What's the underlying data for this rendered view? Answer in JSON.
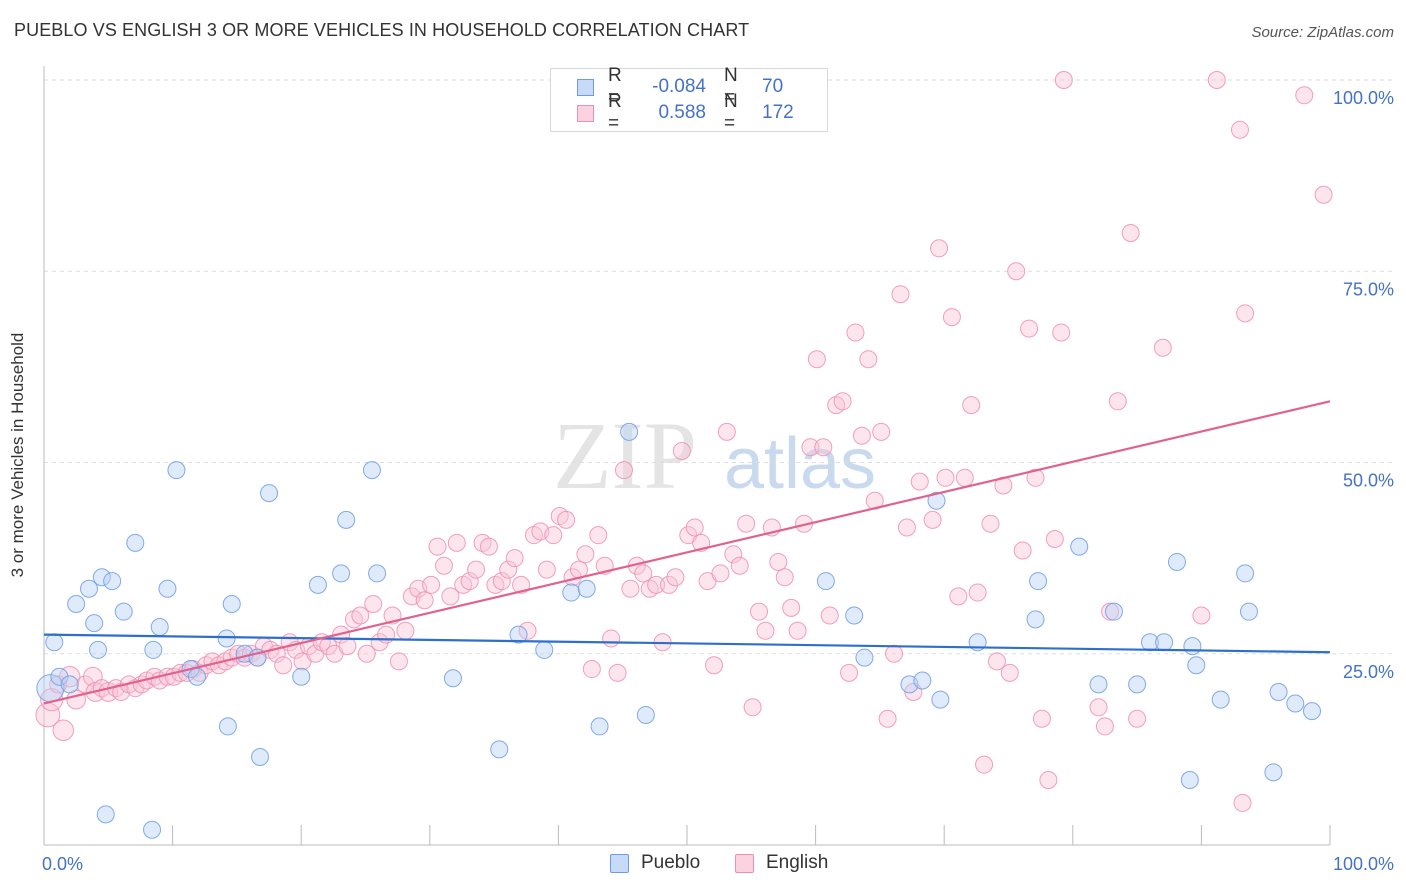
{
  "header": {
    "title": "PUEBLO VS ENGLISH 3 OR MORE VEHICLES IN HOUSEHOLD CORRELATION CHART",
    "source": "Source: ZipAtlas.com"
  },
  "watermark": {
    "zip": "ZIP",
    "atlas": "atlas"
  },
  "legend": {
    "rows": [
      {
        "r_label": "R =",
        "r_value": "-0.084",
        "n_label": "N =",
        "n_value": "70",
        "color": "#6c9ce8"
      },
      {
        "r_label": "R =",
        "r_value": "0.588",
        "n_label": "N =",
        "n_value": "172",
        "color": "#ef8fb0"
      }
    ]
  },
  "bottom_legend": {
    "pueblo": "Pueblo",
    "english": "English"
  },
  "chart_data": {
    "type": "scatter",
    "title": "PUEBLO VS ENGLISH 3 OR MORE VEHICLES IN HOUSEHOLD CORRELATION CHART",
    "xlabel": "",
    "ylabel": "3 or more Vehicles in Household",
    "xlim": [
      0,
      100
    ],
    "ylim": [
      0,
      100
    ],
    "x_tick_labels": {
      "left": "0.0%",
      "right": "100.0%"
    },
    "y_ticks": [
      25,
      50,
      75,
      100
    ],
    "y_tick_labels": [
      "25.0%",
      "50.0%",
      "75.0%",
      "100.0%"
    ],
    "grid": true,
    "legend_position": "top-center",
    "series": [
      {
        "name": "Pueblo",
        "color": "#6c9ce8",
        "fill": "#b9d0f5",
        "trend": [
          [
            0,
            27.5
          ],
          [
            100,
            25.2
          ]
        ],
        "points": [
          [
            0.5,
            20.5,
            1.6
          ],
          [
            0.8,
            26.5,
            1
          ],
          [
            1.2,
            22,
            1
          ],
          [
            2.0,
            21,
            1
          ],
          [
            2.5,
            31.5,
            1
          ],
          [
            3.5,
            33.5,
            1
          ],
          [
            3.9,
            29,
            1
          ],
          [
            4.2,
            25.5,
            1
          ],
          [
            4.5,
            35,
            1
          ],
          [
            5.3,
            34.5,
            1
          ],
          [
            6.2,
            30.5,
            1
          ],
          [
            7.1,
            39.5,
            1
          ],
          [
            8.5,
            25.5,
            1
          ],
          [
            9.0,
            28.5,
            1
          ],
          [
            9.6,
            33.5,
            1
          ],
          [
            10.3,
            49,
            1
          ],
          [
            11.4,
            23,
            1
          ],
          [
            11.9,
            22,
            1
          ],
          [
            14.2,
            27,
            1
          ],
          [
            14.3,
            15.5,
            1
          ],
          [
            14.6,
            31.5,
            1
          ],
          [
            15.6,
            25,
            1
          ],
          [
            16.6,
            24.5,
            1
          ],
          [
            16.8,
            11.5,
            1
          ],
          [
            17.5,
            46,
            1
          ],
          [
            20.0,
            22,
            1
          ],
          [
            21.3,
            34,
            1
          ],
          [
            23.1,
            35.5,
            1
          ],
          [
            23.5,
            42.5,
            1
          ],
          [
            25.5,
            49,
            1
          ],
          [
            25.9,
            35.5,
            1
          ],
          [
            31.8,
            21.8,
            1
          ],
          [
            35.4,
            12.5,
            1
          ],
          [
            36.9,
            27.5,
            1
          ],
          [
            38.9,
            25.5,
            1
          ],
          [
            41.0,
            33,
            1
          ],
          [
            42.2,
            33.5,
            1
          ],
          [
            43.2,
            15.5,
            1
          ],
          [
            45.5,
            54,
            1
          ],
          [
            46.8,
            17,
            1
          ],
          [
            60.8,
            34.5,
            1
          ],
          [
            63.0,
            30,
            1
          ],
          [
            63.8,
            24.5,
            1
          ],
          [
            67.3,
            21,
            1
          ],
          [
            68.3,
            21.5,
            1
          ],
          [
            69.4,
            45,
            1
          ],
          [
            69.7,
            19,
            1
          ],
          [
            72.6,
            26.5,
            1
          ],
          [
            77.1,
            29.5,
            1
          ],
          [
            77.3,
            34.5,
            1
          ],
          [
            80.5,
            39,
            1
          ],
          [
            82.0,
            21,
            1
          ],
          [
            83.2,
            30.5,
            1
          ],
          [
            85.0,
            21,
            1
          ],
          [
            86.0,
            26.5,
            1
          ],
          [
            87.1,
            26.5,
            1
          ],
          [
            88.1,
            37,
            1
          ],
          [
            89.1,
            8.5,
            1
          ],
          [
            89.6,
            23.5,
            1
          ],
          [
            91.5,
            19,
            1
          ],
          [
            93.4,
            35.5,
            1
          ],
          [
            93.7,
            30.5,
            1
          ],
          [
            95.6,
            9.5,
            1
          ],
          [
            96.0,
            20,
            1
          ],
          [
            97.3,
            18.5,
            1
          ],
          [
            98.6,
            17.5,
            1
          ],
          [
            4.8,
            4,
            1
          ],
          [
            8.4,
            2,
            1
          ],
          [
            89.3,
            26,
            1
          ],
          [
            27.0,
            27,
            0.01
          ]
        ]
      },
      {
        "name": "English",
        "color": "#ef8fb0",
        "fill": "#f9c6d6",
        "trend": [
          [
            0,
            18.5
          ],
          [
            100,
            58
          ]
        ],
        "points": [
          [
            0.3,
            17,
            1.4
          ],
          [
            0.6,
            19,
            1.3
          ],
          [
            1.1,
            21,
            1
          ],
          [
            1.5,
            15,
            1.2
          ],
          [
            2.0,
            22,
            1.2
          ],
          [
            2.5,
            19,
            1.1
          ],
          [
            3.2,
            21,
            1
          ],
          [
            3.8,
            22,
            1.1
          ],
          [
            4.0,
            20,
            1.1
          ],
          [
            4.5,
            20.5,
            1
          ],
          [
            5.0,
            20,
            1.1
          ],
          [
            5.6,
            20.5,
            1
          ],
          [
            6.0,
            20,
            1
          ],
          [
            6.6,
            21,
            1
          ],
          [
            7.1,
            20.5,
            1
          ],
          [
            7.6,
            21,
            1
          ],
          [
            8.0,
            21.5,
            1
          ],
          [
            8.6,
            22,
            1
          ],
          [
            9.0,
            21.5,
            1
          ],
          [
            9.6,
            22,
            1
          ],
          [
            10.1,
            22,
            1
          ],
          [
            10.6,
            22.5,
            1
          ],
          [
            11.1,
            22.5,
            1
          ],
          [
            11.6,
            23,
            1
          ],
          [
            12.1,
            22.5,
            1
          ],
          [
            12.6,
            23.5,
            1
          ],
          [
            13.1,
            24,
            1
          ],
          [
            13.6,
            23.5,
            1
          ],
          [
            14.1,
            24,
            1
          ],
          [
            14.6,
            24.5,
            1
          ],
          [
            15.1,
            25,
            1
          ],
          [
            15.6,
            24.5,
            1
          ],
          [
            16.1,
            25,
            1
          ],
          [
            16.6,
            24.5,
            1
          ],
          [
            17.1,
            26,
            1
          ],
          [
            17.6,
            25.5,
            1
          ],
          [
            18.1,
            25,
            1
          ],
          [
            18.6,
            23.5,
            1
          ],
          [
            19.1,
            26.5,
            1
          ],
          [
            19.6,
            25.5,
            1
          ],
          [
            20.1,
            24,
            1
          ],
          [
            20.6,
            26,
            1
          ],
          [
            21.1,
            25,
            1
          ],
          [
            21.6,
            26.5,
            1
          ],
          [
            22.1,
            26,
            1
          ],
          [
            22.6,
            25,
            1
          ],
          [
            23.1,
            27.5,
            1
          ],
          [
            23.6,
            26,
            1
          ],
          [
            24.1,
            29.5,
            1
          ],
          [
            24.6,
            30,
            1
          ],
          [
            25.1,
            25,
            1
          ],
          [
            25.6,
            31.5,
            1
          ],
          [
            26.1,
            26.5,
            1
          ],
          [
            26.6,
            27.5,
            1
          ],
          [
            27.1,
            30,
            1
          ],
          [
            27.6,
            24,
            1
          ],
          [
            28.1,
            28,
            1
          ],
          [
            28.6,
            32.5,
            1
          ],
          [
            29.1,
            33.5,
            1
          ],
          [
            29.6,
            32,
            1
          ],
          [
            30.1,
            34,
            1
          ],
          [
            30.6,
            39,
            1
          ],
          [
            31.1,
            36.5,
            1
          ],
          [
            31.6,
            32.5,
            1
          ],
          [
            32.1,
            39.5,
            1
          ],
          [
            32.6,
            34,
            1
          ],
          [
            33.1,
            34.5,
            1
          ],
          [
            33.6,
            36,
            1
          ],
          [
            34.1,
            39.5,
            1
          ],
          [
            34.6,
            39,
            1
          ],
          [
            35.1,
            34,
            1
          ],
          [
            35.6,
            34.5,
            1
          ],
          [
            36.1,
            36,
            1
          ],
          [
            36.6,
            37.5,
            1
          ],
          [
            37.1,
            34,
            1
          ],
          [
            37.6,
            28,
            1
          ],
          [
            38.1,
            40.5,
            1
          ],
          [
            38.6,
            41,
            1
          ],
          [
            39.1,
            36,
            1
          ],
          [
            39.6,
            40.5,
            1
          ],
          [
            40.1,
            43,
            1
          ],
          [
            40.6,
            42.5,
            1
          ],
          [
            41.1,
            35,
            1
          ],
          [
            41.6,
            36,
            1
          ],
          [
            42.1,
            38,
            1
          ],
          [
            42.6,
            23,
            1
          ],
          [
            43.1,
            40.5,
            1
          ],
          [
            43.6,
            36.5,
            1
          ],
          [
            44.1,
            27,
            1
          ],
          [
            44.6,
            22.5,
            1
          ],
          [
            45.1,
            49,
            1
          ],
          [
            45.6,
            33.5,
            1
          ],
          [
            46.1,
            36.5,
            1
          ],
          [
            46.6,
            35.5,
            1
          ],
          [
            47.1,
            33.5,
            1
          ],
          [
            47.6,
            34,
            1
          ],
          [
            48.1,
            26.5,
            1
          ],
          [
            48.6,
            34,
            1
          ],
          [
            49.1,
            35,
            1
          ],
          [
            49.6,
            51.5,
            1
          ],
          [
            50.1,
            40.5,
            1
          ],
          [
            50.6,
            41.5,
            1
          ],
          [
            51.1,
            39.5,
            1
          ],
          [
            51.6,
            34.5,
            1
          ],
          [
            52.1,
            23.5,
            1
          ],
          [
            52.6,
            35.5,
            1
          ],
          [
            53.1,
            54,
            1
          ],
          [
            53.6,
            38,
            1
          ],
          [
            54.1,
            36.5,
            1
          ],
          [
            54.6,
            42,
            1
          ],
          [
            55.1,
            18,
            1
          ],
          [
            55.6,
            30.5,
            1
          ],
          [
            56.1,
            28,
            1
          ],
          [
            56.6,
            41.5,
            1
          ],
          [
            57.1,
            37,
            1
          ],
          [
            57.6,
            35,
            1
          ],
          [
            58.1,
            31,
            1
          ],
          [
            58.6,
            28,
            1
          ],
          [
            59.1,
            42,
            1
          ],
          [
            59.6,
            52,
            1
          ],
          [
            60.1,
            63.5,
            1
          ],
          [
            60.6,
            52,
            1
          ],
          [
            61.1,
            30,
            1
          ],
          [
            61.6,
            57.5,
            1
          ],
          [
            62.1,
            58,
            1
          ],
          [
            62.6,
            22.5,
            1
          ],
          [
            63.1,
            67,
            1
          ],
          [
            63.6,
            53.5,
            1
          ],
          [
            64.1,
            63.5,
            1
          ],
          [
            64.6,
            45,
            1
          ],
          [
            65.1,
            54,
            1
          ],
          [
            65.6,
            16.5,
            1
          ],
          [
            66.1,
            25,
            1
          ],
          [
            66.6,
            72,
            1
          ],
          [
            67.1,
            41.5,
            1
          ],
          [
            67.6,
            20,
            1
          ],
          [
            68.1,
            47.5,
            1
          ],
          [
            69.1,
            42.5,
            1
          ],
          [
            69.6,
            78,
            1
          ],
          [
            70.1,
            48,
            1
          ],
          [
            70.6,
            69,
            1
          ],
          [
            71.1,
            32.5,
            1
          ],
          [
            71.6,
            48,
            1
          ],
          [
            72.1,
            57.5,
            1
          ],
          [
            72.6,
            33,
            1
          ],
          [
            73.1,
            10.5,
            1
          ],
          [
            73.6,
            42,
            1
          ],
          [
            74.1,
            24,
            1
          ],
          [
            74.6,
            47,
            1
          ],
          [
            75.1,
            22.5,
            1
          ],
          [
            75.6,
            75,
            1
          ],
          [
            76.1,
            38.5,
            1
          ],
          [
            76.6,
            67.5,
            1
          ],
          [
            77.1,
            48,
            1
          ],
          [
            77.6,
            16.5,
            1
          ],
          [
            78.1,
            8.5,
            1
          ],
          [
            78.6,
            40,
            1
          ],
          [
            79.1,
            67,
            1
          ],
          [
            79.3,
            100,
            1
          ],
          [
            82.0,
            18,
            1
          ],
          [
            82.5,
            15.5,
            1
          ],
          [
            82.9,
            30.5,
            1
          ],
          [
            83.5,
            58,
            1
          ],
          [
            84.5,
            80,
            1
          ],
          [
            85.0,
            16.5,
            1
          ],
          [
            87.0,
            65,
            1
          ],
          [
            90.0,
            30,
            1
          ],
          [
            91.2,
            100,
            1
          ],
          [
            93.0,
            93.5,
            1
          ],
          [
            93.2,
            5.5,
            1
          ],
          [
            93.4,
            69.5,
            1
          ],
          [
            98.0,
            98,
            1
          ],
          [
            99.5,
            85,
            1
          ]
        ]
      }
    ]
  }
}
